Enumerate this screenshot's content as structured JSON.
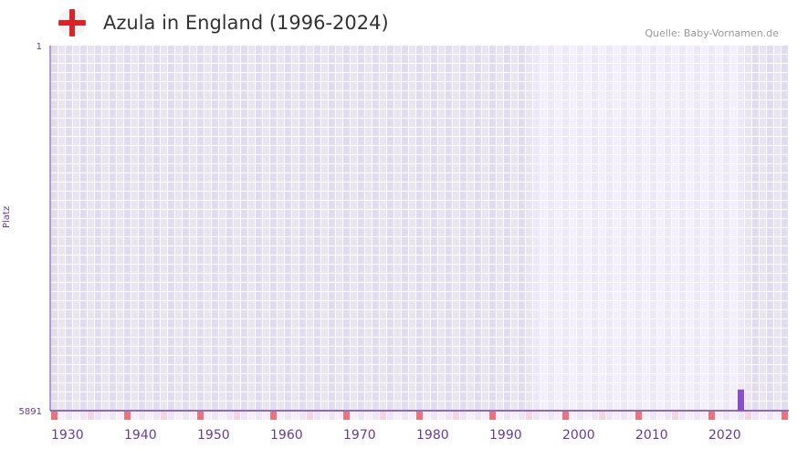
{
  "header": {
    "title": "Azula in England (1996-2024)",
    "source": "Quelle: Baby-Vornamen.de",
    "flag_icon": "england-flag-icon"
  },
  "chart_data": {
    "type": "bar",
    "title": "Azula in England (1996-2024)",
    "ylabel": "Platz",
    "ylim": [
      5891,
      1
    ],
    "y_ticks": [
      "1",
      "5891"
    ],
    "x_range": [
      1930,
      2030
    ],
    "x_ticks": [
      "1930",
      "1940",
      "1950",
      "1960",
      "1970",
      "1980",
      "1990",
      "2000",
      "2010",
      "2020"
    ],
    "highlight_range": [
      1996,
      2024
    ],
    "series": [
      {
        "name": "Azula",
        "x": [
          2024
        ],
        "values": [
          5550
        ]
      }
    ],
    "colors": {
      "bar": "#8a4fc8",
      "axis": "#6a3aa0",
      "decade_marker": "#e8737c",
      "half_marker": "#f5d5e0"
    }
  }
}
